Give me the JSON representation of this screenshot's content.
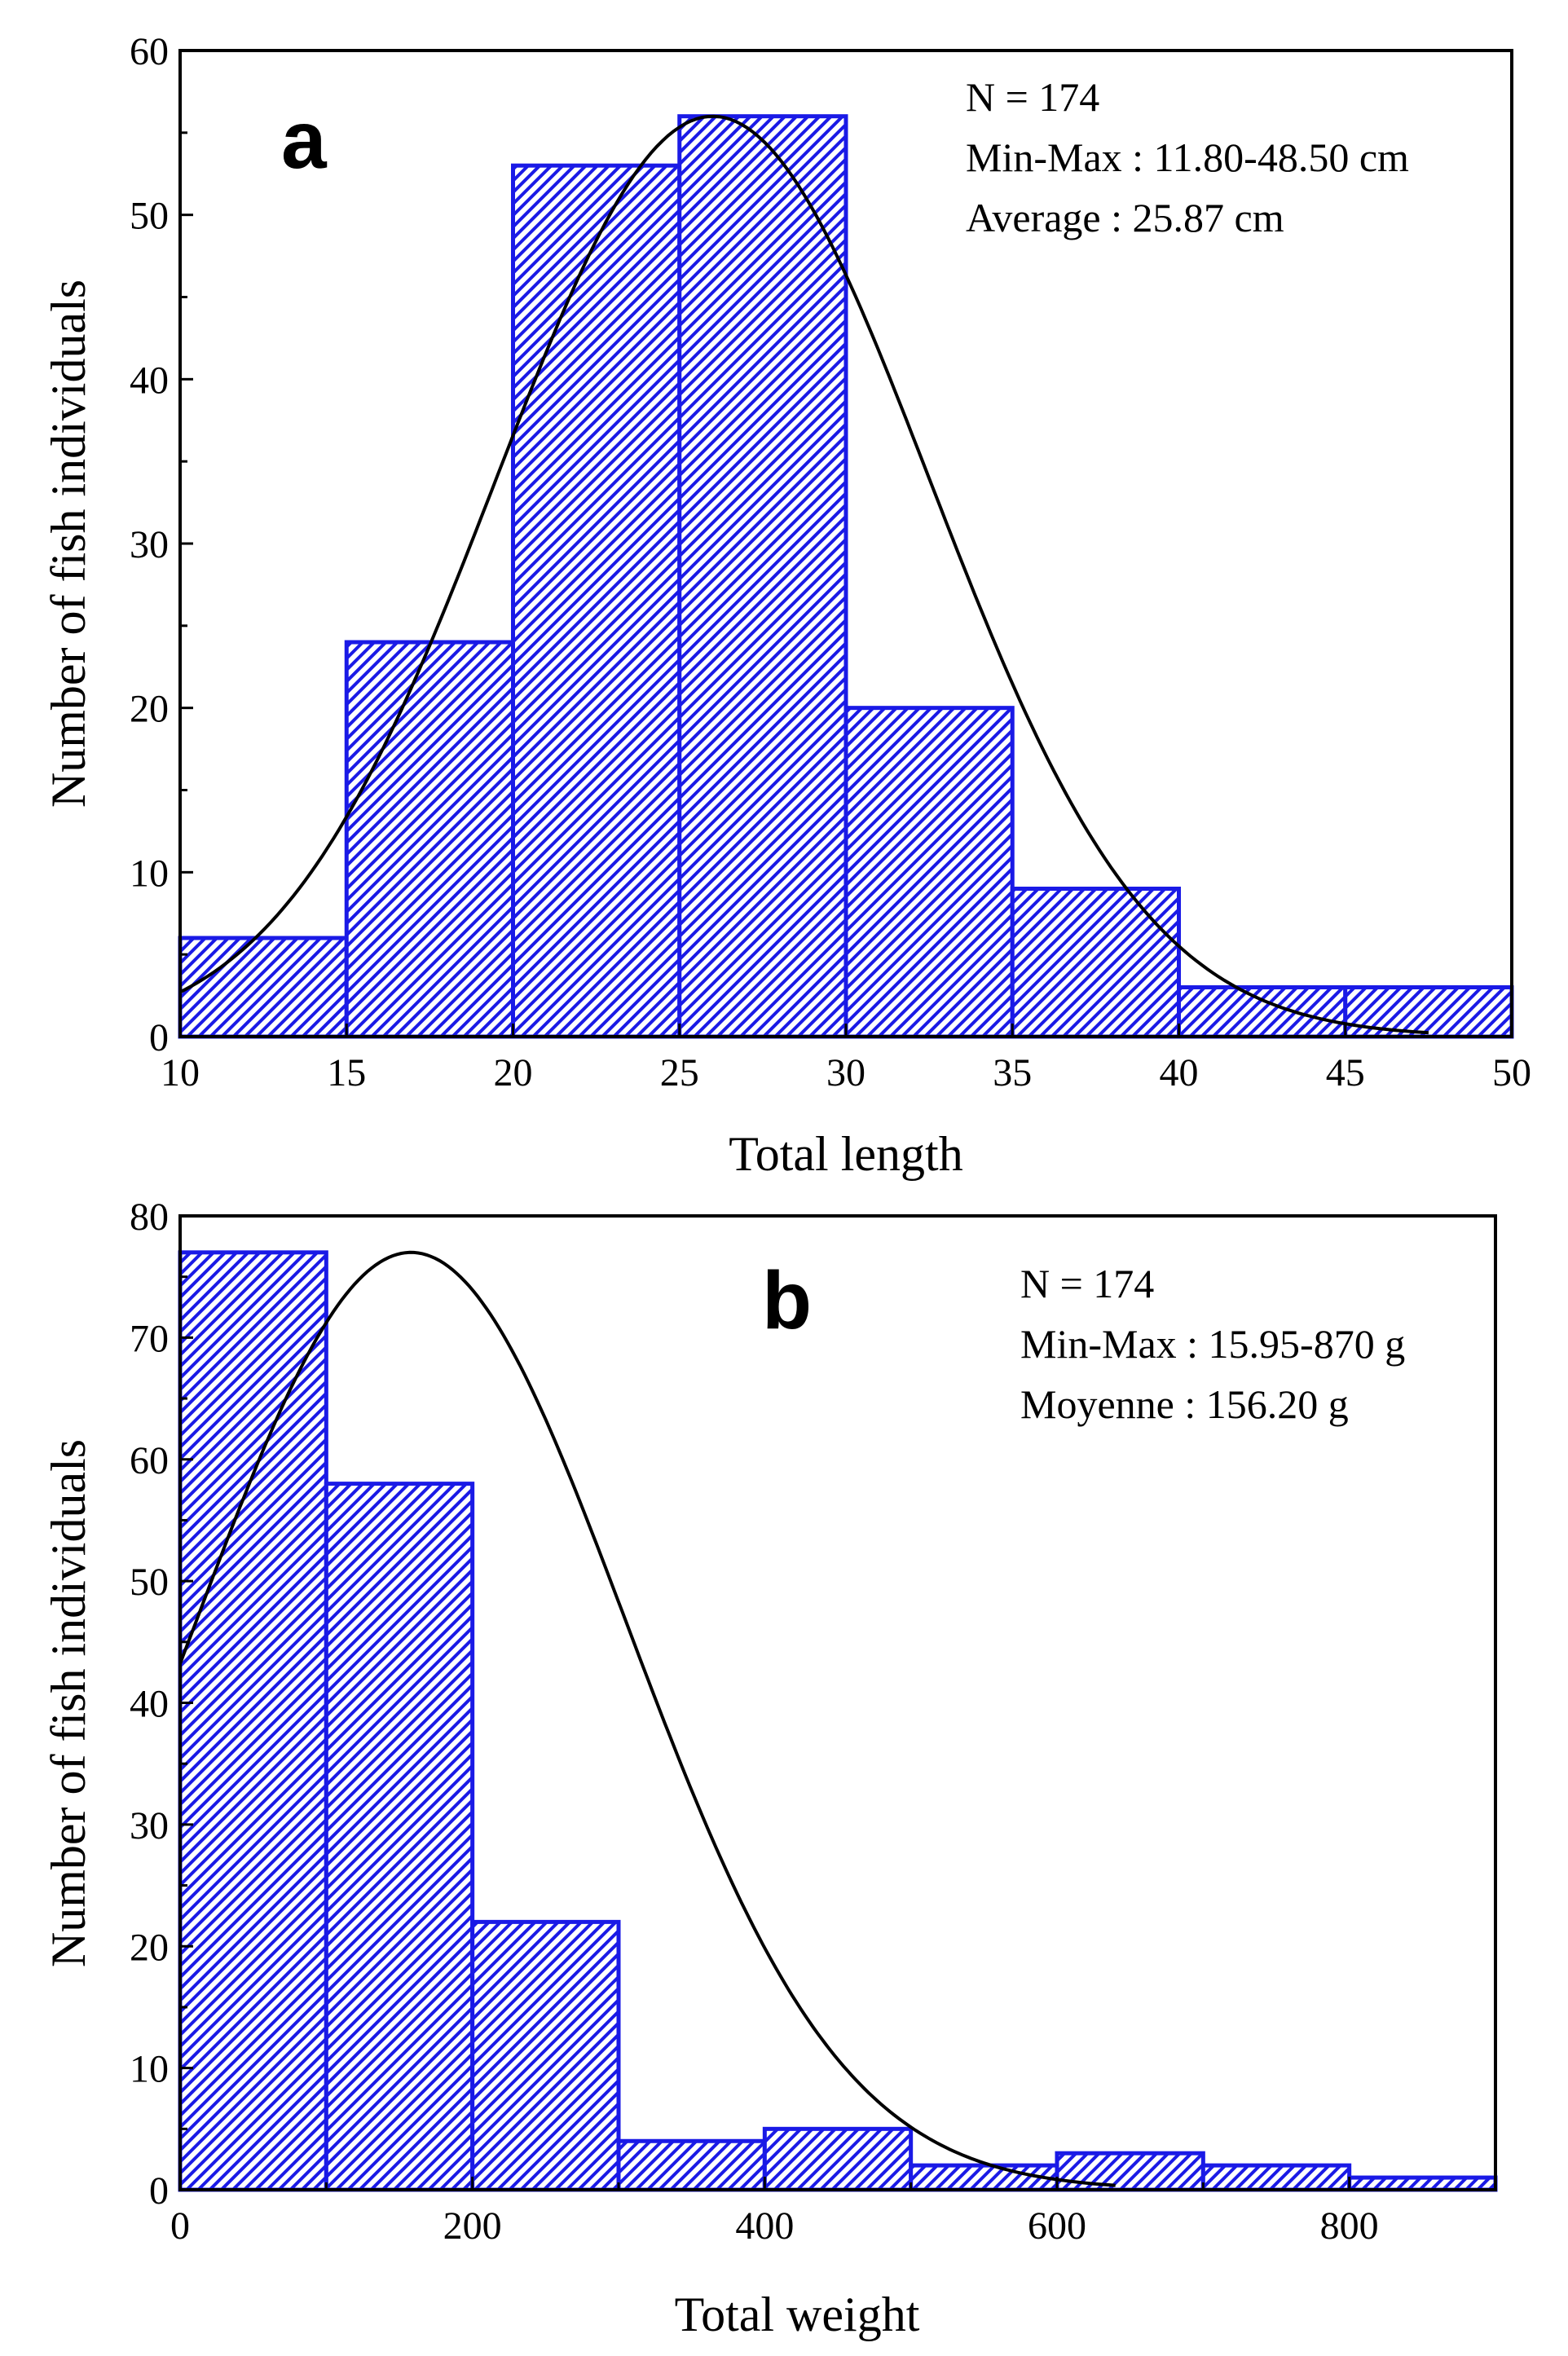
{
  "chart_data": [
    {
      "panel": "a",
      "type": "bar",
      "subtype": "histogram",
      "xlabel": "Total length",
      "ylabel": "Number of fish individuals",
      "xlim": [
        10,
        50
      ],
      "ylim": [
        0,
        60
      ],
      "xticks": [
        10,
        15,
        20,
        25,
        30,
        35,
        40,
        45,
        50
      ],
      "yticks": [
        0,
        10,
        20,
        30,
        40,
        50,
        60
      ],
      "bins": [
        [
          10,
          15
        ],
        [
          15,
          20
        ],
        [
          20,
          25
        ],
        [
          25,
          30
        ],
        [
          30,
          35
        ],
        [
          35,
          40
        ],
        [
          40,
          45
        ],
        [
          45,
          50
        ]
      ],
      "values": [
        6,
        24,
        53,
        56,
        20,
        9,
        3,
        3
      ],
      "fit": {
        "type": "normal",
        "peak": 56,
        "x_peak": 26,
        "sd": 6.5,
        "x_range": [
          10,
          47.5
        ]
      },
      "annotations": [
        "N = 174",
        "Min-Max : 11.80-48.50 cm",
        "Average : 25.87 cm"
      ],
      "bar_color": "#1a1ae6",
      "fit_color": "#000000"
    },
    {
      "panel": "b",
      "type": "bar",
      "subtype": "histogram",
      "xlabel": "Total weight",
      "ylabel": "Number of fish individuals",
      "xlim": [
        0,
        900
      ],
      "ylim": [
        0,
        80
      ],
      "xticks": [
        0,
        200,
        400,
        600,
        800
      ],
      "yticks": [
        0,
        10,
        20,
        30,
        40,
        50,
        60,
        70,
        80
      ],
      "bins": [
        [
          0,
          100
        ],
        [
          100,
          200
        ],
        [
          200,
          300
        ],
        [
          300,
          400
        ],
        [
          400,
          500
        ],
        [
          500,
          600
        ],
        [
          600,
          700
        ],
        [
          700,
          800
        ],
        [
          800,
          900
        ]
      ],
      "values": [
        77,
        58,
        22,
        4,
        5,
        2,
        3,
        2,
        1
      ],
      "fit": {
        "type": "normal",
        "peak": 77,
        "x_peak": 158,
        "sd": 147,
        "x_range": [
          0,
          640
        ]
      },
      "annotations": [
        "N = 174",
        "Min-Max : 15.95-870 g",
        "Moyenne : 156.20 g"
      ],
      "bar_color": "#1a1ae6",
      "fit_color": "#000000"
    }
  ]
}
